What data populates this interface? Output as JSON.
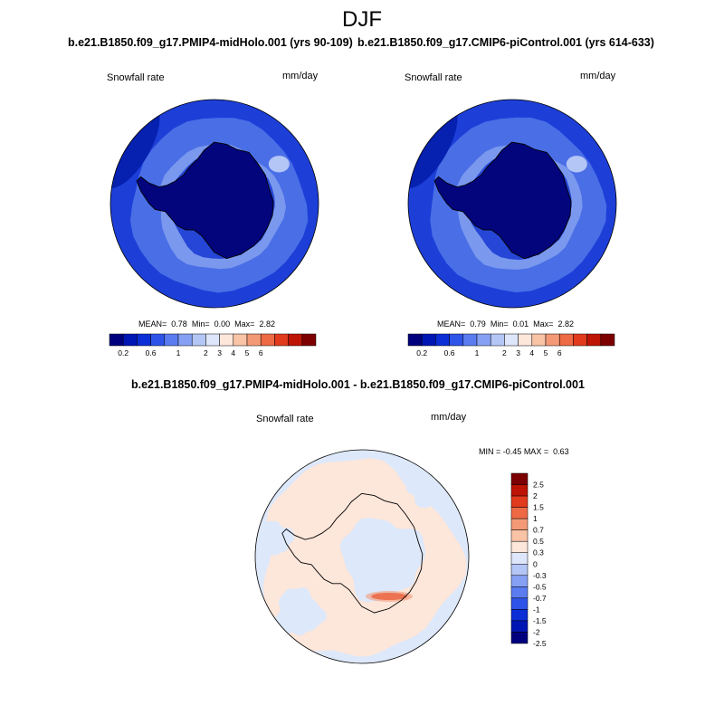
{
  "figure": {
    "season": "DJF",
    "colors": {
      "abs_scale": [
        "#00007e",
        "#0016b4",
        "#0b2ed6",
        "#2e53e8",
        "#5a7cf0",
        "#86a1f3",
        "#b4c6f6",
        "#dde6fa",
        "#fde6da",
        "#f9c3a6",
        "#f49976",
        "#ee6a45",
        "#e23a1c",
        "#bd1405",
        "#7c0000"
      ],
      "diff_scale": [
        "#00007e",
        "#0016b4",
        "#0b2ed6",
        "#2e53e8",
        "#5a7cf0",
        "#86a1f3",
        "#b4c6f6",
        "#dde6fa",
        "#fde6da",
        "#f9c3a6",
        "#f49976",
        "#ee6a45",
        "#e23a1c",
        "#bd1405",
        "#7c0000"
      ],
      "ocean_outer": "#1d3fd8",
      "ocean_mid": "#4a6ee6",
      "ice_ring": "#2546d6",
      "continent": "#02057c",
      "diff_bg": "#dde8fa",
      "diff_pos": "#fde6da",
      "diff_hot": "#e23a1c"
    }
  },
  "chart_data": [
    {
      "type": "heatmap",
      "projection": "south-polar-stereographic",
      "title": "b.e21.B1850.f09_g17.PMIP4-midHolo.001 (yrs 90-109)",
      "variable": "Snowfall rate",
      "units": "mm/day",
      "stats": {
        "mean_label": "MEAN=",
        "mean": "0.78",
        "min_label": "Min=",
        "min": "0.00",
        "max_label": "Max=",
        "max": "2.82"
      },
      "colorbar_ticks": [
        "0.2",
        "0.6",
        "1",
        "2",
        "3",
        "4",
        "5",
        "6"
      ]
    },
    {
      "type": "heatmap",
      "projection": "south-polar-stereographic",
      "title": "b.e21.B1850.f09_g17.CMIP6-piControl.001 (yrs 614-633)",
      "variable": "Snowfall rate",
      "units": "mm/day",
      "stats": {
        "mean_label": "MEAN=",
        "mean": "0.79",
        "min_label": "Min=",
        "min": "0.01",
        "max_label": "Max=",
        "max": "2.82"
      },
      "colorbar_ticks": [
        "0.2",
        "0.6",
        "1",
        "2",
        "3",
        "4",
        "5",
        "6"
      ]
    },
    {
      "type": "heatmap",
      "projection": "south-polar-stereographic",
      "title": "b.e21.B1850.f09_g17.PMIP4-midHolo.001 - b.e21.B1850.f09_g17.CMIP6-piControl.001",
      "variable": "Snowfall rate",
      "units": "mm/day",
      "stats": {
        "min_label": "MIN =",
        "min": "-0.45",
        "max_label": "MAX =",
        "max": "0.63"
      },
      "colorbar_ticks": [
        "2.5",
        "2",
        "1.5",
        "1",
        "0.7",
        "0.5",
        "0.3",
        "0",
        "-0.3",
        "-0.5",
        "-0.7",
        "-1",
        "-1.5",
        "-2",
        "-2.5"
      ]
    }
  ]
}
